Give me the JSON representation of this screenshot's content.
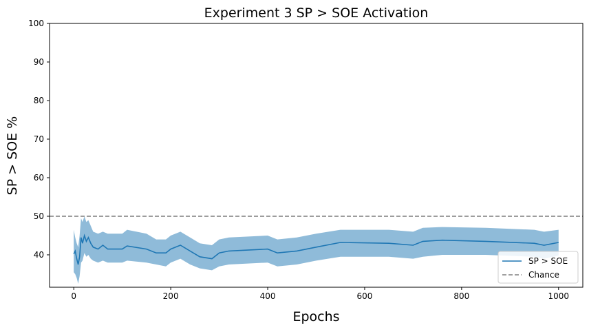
{
  "chart_data": {
    "type": "line",
    "title": "Experiment 3 SP > SOE Activation",
    "xlabel": "Epochs",
    "ylabel": "SP > SOE %",
    "xlim": [
      -50,
      1050
    ],
    "ylim": [
      31.6,
      100
    ],
    "xticks": [
      0,
      200,
      400,
      600,
      800,
      1000
    ],
    "yticks": [
      40,
      50,
      60,
      70,
      80,
      90,
      100
    ],
    "grid": false,
    "legend_position": "lower-right",
    "series": [
      {
        "name": "SP > SOE",
        "color": "#1f77b4",
        "band_color": "#1f77b4",
        "band_opacity": 0.5,
        "points": [
          {
            "x": 0,
            "y": 40.2,
            "lo": 35.5,
            "hi": 46.5
          },
          {
            "x": 3,
            "y": 41.0,
            "lo": 35.0,
            "hi": 44.5
          },
          {
            "x": 6,
            "y": 39.0,
            "lo": 34.0,
            "hi": 43.0
          },
          {
            "x": 9,
            "y": 37.5,
            "lo": 32.5,
            "hi": 42.0
          },
          {
            "x": 12,
            "y": 39.5,
            "lo": 34.5,
            "hi": 45.0
          },
          {
            "x": 15,
            "y": 44.5,
            "lo": 38.0,
            "hi": 49.5
          },
          {
            "x": 18,
            "y": 43.0,
            "lo": 38.5,
            "hi": 48.5
          },
          {
            "x": 22,
            "y": 45.0,
            "lo": 40.5,
            "hi": 50.0
          },
          {
            "x": 26,
            "y": 43.5,
            "lo": 39.5,
            "hi": 48.5
          },
          {
            "x": 30,
            "y": 44.5,
            "lo": 40.0,
            "hi": 49.0
          },
          {
            "x": 35,
            "y": 43.0,
            "lo": 39.0,
            "hi": 47.5
          },
          {
            "x": 40,
            "y": 42.0,
            "lo": 38.5,
            "hi": 46.0
          },
          {
            "x": 50,
            "y": 41.5,
            "lo": 38.0,
            "hi": 45.5
          },
          {
            "x": 60,
            "y": 42.5,
            "lo": 38.5,
            "hi": 46.0
          },
          {
            "x": 70,
            "y": 41.5,
            "lo": 38.0,
            "hi": 45.5
          },
          {
            "x": 100,
            "y": 41.5,
            "lo": 38.0,
            "hi": 45.5
          },
          {
            "x": 110,
            "y": 42.3,
            "lo": 38.5,
            "hi": 46.5
          },
          {
            "x": 150,
            "y": 41.5,
            "lo": 38.0,
            "hi": 45.5
          },
          {
            "x": 170,
            "y": 40.5,
            "lo": 37.5,
            "hi": 44.0
          },
          {
            "x": 190,
            "y": 40.5,
            "lo": 37.0,
            "hi": 44.0
          },
          {
            "x": 200,
            "y": 41.5,
            "lo": 38.0,
            "hi": 45.0
          },
          {
            "x": 220,
            "y": 42.5,
            "lo": 39.0,
            "hi": 46.0
          },
          {
            "x": 240,
            "y": 41.0,
            "lo": 37.5,
            "hi": 44.5
          },
          {
            "x": 260,
            "y": 39.5,
            "lo": 36.5,
            "hi": 43.0
          },
          {
            "x": 285,
            "y": 39.0,
            "lo": 36.0,
            "hi": 42.5
          },
          {
            "x": 300,
            "y": 40.5,
            "lo": 37.0,
            "hi": 44.0
          },
          {
            "x": 320,
            "y": 41.0,
            "lo": 37.5,
            "hi": 44.5
          },
          {
            "x": 400,
            "y": 41.5,
            "lo": 38.0,
            "hi": 45.0
          },
          {
            "x": 420,
            "y": 40.5,
            "lo": 37.0,
            "hi": 44.0
          },
          {
            "x": 460,
            "y": 41.0,
            "lo": 37.5,
            "hi": 44.5
          },
          {
            "x": 500,
            "y": 42.0,
            "lo": 38.5,
            "hi": 45.5
          },
          {
            "x": 550,
            "y": 43.2,
            "lo": 39.5,
            "hi": 46.5
          },
          {
            "x": 650,
            "y": 43.0,
            "lo": 39.5,
            "hi": 46.5
          },
          {
            "x": 700,
            "y": 42.5,
            "lo": 39.0,
            "hi": 46.0
          },
          {
            "x": 720,
            "y": 43.5,
            "lo": 39.5,
            "hi": 47.0
          },
          {
            "x": 760,
            "y": 43.8,
            "lo": 40.0,
            "hi": 47.2
          },
          {
            "x": 850,
            "y": 43.5,
            "lo": 40.0,
            "hi": 47.0
          },
          {
            "x": 950,
            "y": 43.0,
            "lo": 39.5,
            "hi": 46.5
          },
          {
            "x": 970,
            "y": 42.5,
            "lo": 39.0,
            "hi": 46.0
          },
          {
            "x": 1000,
            "y": 43.2,
            "lo": 39.8,
            "hi": 46.5
          }
        ]
      },
      {
        "name": "Chance",
        "color": "#808080",
        "style": "dashed",
        "constant_y": 50
      }
    ]
  }
}
